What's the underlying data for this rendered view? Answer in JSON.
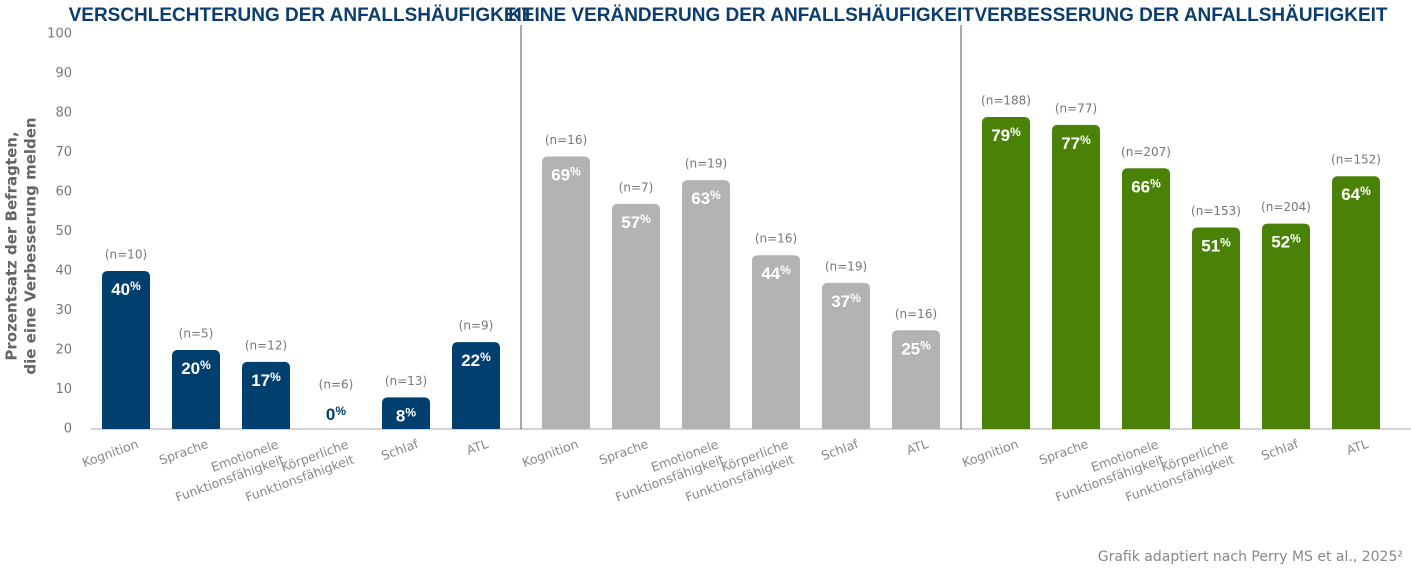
{
  "chart_data": {
    "type": "bar",
    "ylim": [
      0,
      100
    ],
    "yticks": [
      0,
      10,
      20,
      30,
      40,
      50,
      60,
      70,
      80,
      90,
      100
    ],
    "y_label": [
      "Prozentsatz der Befragten,",
      "die eine Verbesserung melden"
    ],
    "note": "Grafik adaptiert nach Perry MS et al., 2025²",
    "panels": [
      {
        "title": "VERSCHLECHTERUNG DER ANFALLSHÄUFIGKEIT",
        "color": "#003f6e",
        "categories": [
          "Kognition",
          "Sprache",
          "Emotionele Funktionsfähigkeit",
          "Körperliche Funktionsfähigkeit",
          "Schlaf",
          "ATL"
        ],
        "values": [
          40,
          20,
          17,
          0,
          8,
          22
        ],
        "value_labels": [
          "40%",
          "20%",
          "17%",
          "0%",
          "8%",
          "22%"
        ],
        "annotations": [
          "(n=10)",
          "(n=5)",
          "(n=12)",
          "(n=6)",
          "(n=13)",
          "(n=9)"
        ]
      },
      {
        "title": "KEINE VERÄNDERUNG DER ANFALLSHÄUFIGKEIT",
        "color": "#b3b3b3",
        "categories": [
          "Kognition",
          "Sprache",
          "Emotionele Funktionsfähigkeit",
          "Körperliche Funktionsfähigkeit",
          "Schlaf",
          "ATL"
        ],
        "values": [
          69,
          57,
          63,
          44,
          37,
          25
        ],
        "value_labels": [
          "69%",
          "57%",
          "63%",
          "44%",
          "37%",
          "25%"
        ],
        "annotations": [
          "(n=16)",
          "(n=7)",
          "(n=19)",
          "(n=16)",
          "(n=19)",
          "(n=16)"
        ]
      },
      {
        "title": "VERBESSERUNG DER ANFALLSHÄUFIGKEIT",
        "color": "#4a8208",
        "categories": [
          "Kognition",
          "Sprache",
          "Emotionele Funktionsfähigkeit",
          "Körperliche Funktionsfähigkeit",
          "Schlaf",
          "ATL"
        ],
        "values": [
          79,
          77,
          66,
          51,
          52,
          64
        ],
        "value_labels": [
          "79%",
          "77%",
          "66%",
          "51%",
          "52%",
          "64%"
        ],
        "annotations": [
          "(n=188)",
          "(n=77)",
          "(n=207)",
          "(n=153)",
          "(n=204)",
          "(n=152)"
        ]
      }
    ]
  }
}
